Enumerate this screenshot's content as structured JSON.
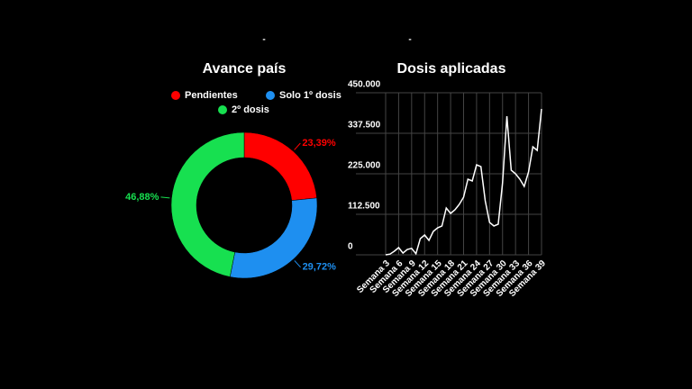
{
  "chart_data": [
    {
      "type": "donut",
      "title": "Avance país",
      "subtitle": "-",
      "categories": [
        "Pendientes",
        "Solo 1º dosis",
        "2º dosis"
      ],
      "values": [
        23.39,
        29.72,
        46.88
      ],
      "value_labels": [
        "23,39%",
        "29,72%",
        "46,88%"
      ],
      "colors": [
        "#ff0000",
        "#1e8ff0",
        "#17e050"
      ]
    },
    {
      "type": "line",
      "title": "Dosis aplicadas",
      "subtitle": "-",
      "categories": [
        "Semana 3",
        null,
        null,
        "Semana 6",
        null,
        null,
        "Semana 9",
        null,
        null,
        "Semana 12",
        null,
        null,
        "Semana 15",
        null,
        null,
        "Semana 18",
        null,
        null,
        "Semana 21",
        null,
        null,
        "Semana 24",
        null,
        null,
        "Semana 27",
        null,
        null,
        "Semana 30",
        null,
        null,
        "Semana 33",
        null,
        null,
        "Semana 36",
        null,
        null,
        "Semana 39"
      ],
      "series": [
        {
          "name": "Dosis aplicadas",
          "color": "#ffffff",
          "values": [
            0,
            2000,
            10000,
            20000,
            5000,
            15000,
            18000,
            3000,
            45000,
            55000,
            40000,
            65000,
            75000,
            80000,
            130000,
            115000,
            125000,
            140000,
            160000,
            210000,
            205000,
            250000,
            245000,
            150000,
            90000,
            80000,
            85000,
            200000,
            385000,
            235000,
            225000,
            210000,
            190000,
            230000,
            300000,
            290000,
            405000
          ]
        }
      ],
      "ylim": [
        0,
        450000
      ],
      "yticks": [
        0,
        {
          "value": 112500,
          "label": "112.500"
        },
        {
          "value": 225000,
          "label": "225.000"
        },
        {
          "value": 337500,
          "label": "337.500"
        },
        {
          "value": 450000,
          "label": "450.000"
        }
      ],
      "grid": true
    }
  ]
}
